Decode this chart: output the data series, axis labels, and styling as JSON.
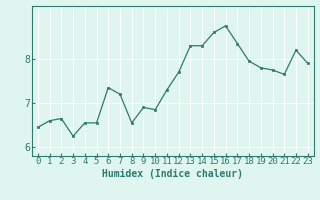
{
  "x": [
    0,
    1,
    2,
    3,
    4,
    5,
    6,
    7,
    8,
    9,
    10,
    11,
    12,
    13,
    14,
    15,
    16,
    17,
    18,
    19,
    20,
    21,
    22,
    23
  ],
  "y": [
    6.45,
    6.6,
    6.65,
    6.25,
    6.55,
    6.55,
    7.35,
    7.2,
    6.55,
    6.9,
    6.85,
    7.3,
    7.7,
    8.3,
    8.3,
    8.6,
    8.75,
    8.35,
    7.95,
    7.8,
    7.75,
    7.65,
    8.2,
    7.9
  ],
  "xlabel": "Humidex (Indice chaleur)",
  "ylim": [
    5.8,
    9.2
  ],
  "xlim": [
    -0.5,
    23.5
  ],
  "yticks": [
    6,
    7,
    8
  ],
  "xticks": [
    0,
    1,
    2,
    3,
    4,
    5,
    6,
    7,
    8,
    9,
    10,
    11,
    12,
    13,
    14,
    15,
    16,
    17,
    18,
    19,
    20,
    21,
    22,
    23
  ],
  "line_color": "#2d7a6e",
  "marker_color": "#2d7a6e",
  "bg_color": "#dff5f0",
  "grid_color": "#ffffff",
  "axis_color": "#2d7a6e",
  "tick_color": "#2d7a6e",
  "label_color": "#2d7a6e",
  "xlabel_fontsize": 7,
  "tick_fontsize": 6.5
}
